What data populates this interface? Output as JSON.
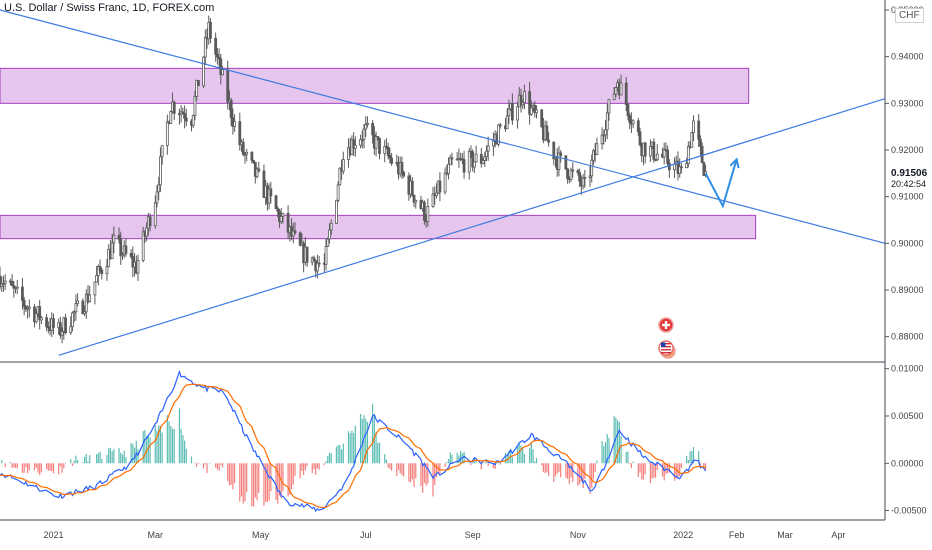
{
  "header": {
    "title": "U.S. Dollar / Swiss Franc, 1D, FOREX.com",
    "currency": "CHF"
  },
  "price_panel": {
    "current_price": "0.91506",
    "countdown": "20:42:54"
  },
  "colors": {
    "candle": "#5a5a5a",
    "trendline": "#3d7ae0",
    "zone_fill": "#e6c6ee",
    "zone_border": "#a23fbf",
    "macd": "#2962ff",
    "signal": "#ff6d00",
    "hist_pos": "#26a69a",
    "hist_neg": "#ef5350",
    "arrow": "#2f8de4"
  },
  "chart_data": [
    {
      "type": "candlestick",
      "title": "U.S. Dollar / Swiss Franc, 1D, FOREX.com",
      "ylabel": "CHF",
      "ylim": [
        0.875,
        0.95
      ],
      "y_ticks": [
        "0.95000",
        "0.94000",
        "0.93000",
        "0.92000",
        "0.91000",
        "0.90000",
        "0.89000",
        "0.88000"
      ],
      "x_ticks": [
        "2021",
        "Mar",
        "May",
        "Jul",
        "Sep",
        "Nov",
        "2022",
        "Feb",
        "Mar",
        "Apr"
      ],
      "anchors": [
        {
          "date": "2020-12-01",
          "close": 0.893
        },
        {
          "date": "2020-12-15",
          "close": 0.887
        },
        {
          "date": "2021-01-04",
          "close": 0.881
        },
        {
          "date": "2021-01-20",
          "close": 0.888
        },
        {
          "date": "2021-02-05",
          "close": 0.9
        },
        {
          "date": "2021-02-18",
          "close": 0.895
        },
        {
          "date": "2021-03-01",
          "close": 0.91
        },
        {
          "date": "2021-03-10",
          "close": 0.93
        },
        {
          "date": "2021-03-22",
          "close": 0.927
        },
        {
          "date": "2021-04-01",
          "close": 0.946
        },
        {
          "date": "2021-04-20",
          "close": 0.92
        },
        {
          "date": "2021-05-10",
          "close": 0.907
        },
        {
          "date": "2021-05-25",
          "close": 0.898
        },
        {
          "date": "2021-06-07",
          "close": 0.895
        },
        {
          "date": "2021-06-18",
          "close": 0.92
        },
        {
          "date": "2021-07-01",
          "close": 0.924
        },
        {
          "date": "2021-07-20",
          "close": 0.916
        },
        {
          "date": "2021-08-05",
          "close": 0.906
        },
        {
          "date": "2021-08-20",
          "close": 0.917
        },
        {
          "date": "2021-09-06",
          "close": 0.918
        },
        {
          "date": "2021-09-30",
          "close": 0.932
        },
        {
          "date": "2021-10-20",
          "close": 0.918
        },
        {
          "date": "2021-11-05",
          "close": 0.912
        },
        {
          "date": "2021-11-24",
          "close": 0.935
        },
        {
          "date": "2021-12-08",
          "close": 0.921
        },
        {
          "date": "2021-12-22",
          "close": 0.918
        },
        {
          "date": "2021-12-31",
          "close": 0.915
        },
        {
          "date": "2022-01-07",
          "close": 0.925
        },
        {
          "date": "2022-01-14",
          "close": 0.915
        }
      ],
      "resistance_zone": [
        0.93,
        0.9375
      ],
      "support_zone": [
        0.901,
        0.906
      ],
      "trendlines": [
        {
          "from": {
            "date": "2020-12-01",
            "price": 0.95
          },
          "to": {
            "date": "2022-04-28",
            "price": 0.9
          }
        },
        {
          "from": {
            "date": "2021-01-04",
            "price": 0.876
          },
          "to": {
            "date": "2022-04-28",
            "price": 0.931
          }
        }
      ],
      "projection": [
        {
          "date": "2022-01-14",
          "price": 0.915
        },
        {
          "date": "2022-01-24",
          "price": 0.908
        },
        {
          "date": "2022-02-01",
          "price": 0.918
        }
      ],
      "last_price": 0.91506
    },
    {
      "type": "macd",
      "ylim": [
        -0.006,
        0.0105
      ],
      "y_ticks": [
        "0.01000",
        "0.00500",
        "0.00000",
        "-0.00500"
      ],
      "macd_anchors": [
        {
          "date": "2020-12-01",
          "value": -0.001
        },
        {
          "date": "2021-01-04",
          "value": -0.0035
        },
        {
          "date": "2021-01-25",
          "value": -0.0025
        },
        {
          "date": "2021-02-15",
          "value": 0.0
        },
        {
          "date": "2021-03-01",
          "value": 0.004
        },
        {
          "date": "2021-03-15",
          "value": 0.0095
        },
        {
          "date": "2021-03-28",
          "value": 0.008
        },
        {
          "date": "2021-04-10",
          "value": 0.0075
        },
        {
          "date": "2021-04-25",
          "value": 0.002
        },
        {
          "date": "2021-05-15",
          "value": -0.004
        },
        {
          "date": "2021-06-05",
          "value": -0.005
        },
        {
          "date": "2021-06-20",
          "value": -0.002
        },
        {
          "date": "2021-07-05",
          "value": 0.005
        },
        {
          "date": "2021-07-25",
          "value": 0.002
        },
        {
          "date": "2021-08-10",
          "value": -0.0015
        },
        {
          "date": "2021-08-25",
          "value": 0.0005
        },
        {
          "date": "2021-09-15",
          "value": 0.0
        },
        {
          "date": "2021-10-05",
          "value": 0.003
        },
        {
          "date": "2021-10-25",
          "value": 0.0
        },
        {
          "date": "2021-11-10",
          "value": -0.003
        },
        {
          "date": "2021-11-25",
          "value": 0.0035
        },
        {
          "date": "2021-12-10",
          "value": 0.0005
        },
        {
          "date": "2021-12-31",
          "value": -0.0015
        },
        {
          "date": "2022-01-08",
          "value": 0.0005
        },
        {
          "date": "2022-01-14",
          "value": -0.001
        }
      ],
      "signal_period_days": 9
    }
  ]
}
